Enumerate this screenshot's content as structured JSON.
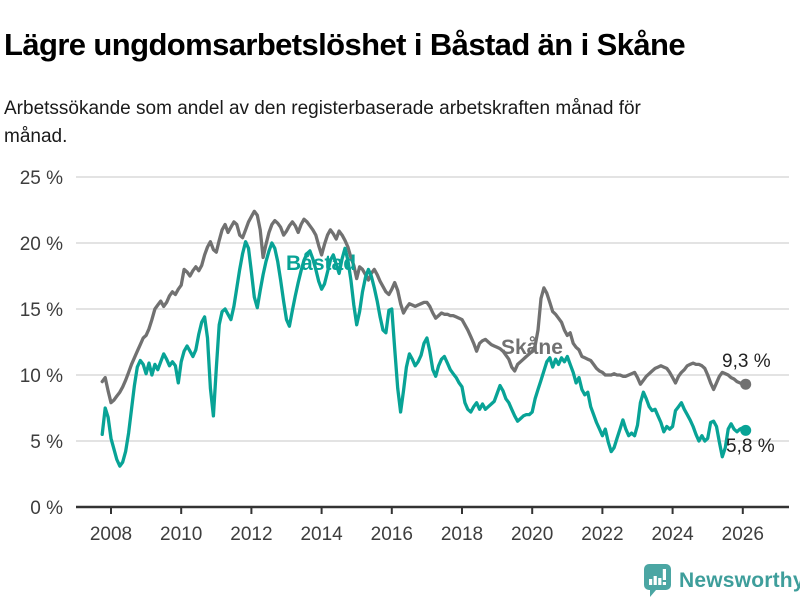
{
  "header": {
    "title": "Lägre ungdomsarbetslöshet i Båstad än i Skåne",
    "subtitle": "Arbetssökande som andel av den registerbaserade arbetskraften månad för månad."
  },
  "footer": {
    "brand": "Newsworthy",
    "logo_color": "#4BA6A3"
  },
  "colors": {
    "bastad_line": "#08A396",
    "skane_line": "#717171",
    "gridline": "#dadada",
    "axis": "#333333",
    "tick_text": "#3d3d3d"
  },
  "chart_data": {
    "type": "line",
    "title": "Lägre ungdomsarbetslöshet i Båstad än i Skåne",
    "subtitle": "Arbetssökande som andel av den registerbaserade arbetskraften månad för månad.",
    "unit": "%",
    "frequency": "monthly",
    "x_start": "2007-10",
    "x_end": "2026-02",
    "ylim": [
      0,
      25
    ],
    "grid": true,
    "legend_position": "inline-labels",
    "y_ticks": [
      {
        "value": 0,
        "label": "0 %"
      },
      {
        "value": 5,
        "label": "5 %"
      },
      {
        "value": 10,
        "label": "10 %"
      },
      {
        "value": 15,
        "label": "15 %"
      },
      {
        "value": 20,
        "label": "20 %"
      },
      {
        "value": 25,
        "label": "25 %"
      }
    ],
    "x_ticks": [
      {
        "year": 2008,
        "label": "2008"
      },
      {
        "year": 2010,
        "label": "2010"
      },
      {
        "year": 2012,
        "label": "2012"
      },
      {
        "year": 2014,
        "label": "2014"
      },
      {
        "year": 2016,
        "label": "2016"
      },
      {
        "year": 2018,
        "label": "2018"
      },
      {
        "year": 2020,
        "label": "2020"
      },
      {
        "year": 2022,
        "label": "2022"
      },
      {
        "year": 2024,
        "label": "2024"
      },
      {
        "year": 2026,
        "label": "2026"
      }
    ],
    "series": [
      {
        "name": "Skåne",
        "color": "#717171",
        "end_label": "9,3 %",
        "end_value": 9.3,
        "values": [
          9.5,
          9.8,
          8.8,
          7.9,
          8.1,
          8.4,
          8.7,
          9.1,
          9.6,
          10.2,
          10.8,
          11.3,
          11.8,
          12.3,
          12.8,
          13.0,
          13.5,
          14.2,
          15.0,
          15.3,
          15.6,
          15.2,
          15.5,
          16.0,
          16.3,
          16.1,
          16.5,
          16.8,
          18.0,
          17.8,
          17.5,
          17.9,
          18.2,
          17.9,
          18.3,
          19.1,
          19.7,
          20.1,
          19.5,
          19.3,
          20.2,
          21.0,
          21.4,
          20.8,
          21.2,
          21.6,
          21.4,
          20.6,
          20.4,
          21.0,
          21.6,
          22.0,
          22.4,
          22.1,
          21.0,
          18.9,
          19.9,
          20.8,
          21.4,
          21.7,
          21.5,
          21.2,
          20.6,
          20.9,
          21.3,
          21.6,
          21.3,
          20.8,
          21.4,
          21.8,
          21.6,
          21.3,
          21.0,
          20.6,
          19.8,
          19.1,
          19.9,
          20.6,
          21.0,
          20.7,
          20.3,
          20.9,
          20.6,
          20.2,
          19.7,
          18.9,
          18.3,
          17.3,
          18.2,
          18.0,
          17.6,
          17.2,
          17.7,
          18.0,
          17.6,
          17.1,
          16.7,
          16.3,
          16.1,
          16.5,
          17.0,
          16.4,
          15.4,
          14.7,
          15.1,
          15.4,
          15.3,
          15.2,
          15.3,
          15.4,
          15.5,
          15.5,
          15.2,
          14.7,
          14.3,
          14.5,
          14.7,
          14.6,
          14.6,
          14.5,
          14.5,
          14.4,
          14.3,
          14.2,
          13.8,
          13.4,
          12.9,
          12.4,
          11.8,
          12.4,
          12.6,
          12.7,
          12.5,
          12.3,
          12.2,
          12.1,
          12.0,
          11.8,
          11.5,
          11.2,
          10.6,
          10.3,
          10.8,
          11.0,
          11.2,
          11.4,
          11.6,
          11.8,
          12.2,
          13.4,
          15.8,
          16.6,
          16.2,
          15.5,
          14.8,
          14.6,
          14.3,
          14.0,
          13.4,
          13.0,
          13.2,
          12.4,
          12.1,
          11.9,
          11.4,
          11.3,
          11.2,
          11.1,
          10.8,
          10.5,
          10.3,
          10.2,
          10.0,
          10.0,
          10.0,
          10.1,
          10.0,
          10.0,
          9.9,
          9.9,
          10.0,
          10.1,
          10.2,
          9.8,
          9.3,
          9.6,
          9.9,
          10.1,
          10.3,
          10.5,
          10.6,
          10.7,
          10.6,
          10.5,
          10.2,
          9.8,
          9.4,
          9.9,
          10.2,
          10.4,
          10.7,
          10.8,
          10.9,
          10.8,
          10.8,
          10.7,
          10.5,
          10.0,
          9.4,
          8.9,
          9.4,
          9.9,
          10.2,
          10.1,
          10.0,
          9.8,
          9.7,
          9.5,
          9.4,
          9.3,
          9.3
        ]
      },
      {
        "name": "Båstad",
        "color": "#08A396",
        "end_label": "5,8 %",
        "end_value": 5.8,
        "values": [
          5.5,
          7.5,
          6.8,
          5.2,
          4.4,
          3.6,
          3.1,
          3.4,
          4.2,
          5.6,
          7.4,
          9.2,
          10.6,
          11.1,
          10.8,
          10.1,
          10.9,
          10.0,
          10.8,
          10.4,
          11.0,
          11.6,
          11.2,
          10.7,
          11.0,
          10.7,
          9.4,
          11.0,
          11.8,
          12.2,
          11.8,
          11.4,
          11.9,
          13.1,
          14.0,
          14.4,
          12.8,
          9.0,
          6.9,
          10.5,
          13.8,
          14.8,
          15.0,
          14.6,
          14.2,
          15.2,
          16.6,
          18.0,
          19.2,
          20.1,
          19.6,
          17.8,
          15.9,
          15.1,
          16.4,
          17.6,
          18.6,
          19.4,
          20.0,
          19.6,
          18.6,
          17.2,
          15.6,
          14.2,
          13.7,
          14.9,
          16.0,
          17.0,
          17.9,
          18.7,
          19.2,
          19.4,
          18.8,
          18.0,
          17.1,
          16.5,
          16.9,
          17.8,
          18.7,
          19.1,
          18.4,
          17.7,
          18.8,
          19.6,
          18.7,
          17.2,
          15.3,
          13.8,
          14.8,
          16.3,
          17.4,
          18.0,
          17.5,
          16.6,
          15.6,
          14.4,
          13.4,
          13.2,
          14.9,
          15.0,
          12.0,
          9.0,
          7.2,
          8.8,
          10.6,
          11.6,
          11.2,
          10.7,
          11.0,
          11.5,
          12.4,
          12.8,
          11.8,
          10.4,
          9.9,
          10.7,
          11.2,
          11.4,
          10.9,
          10.4,
          10.1,
          9.8,
          9.4,
          9.1,
          7.9,
          7.4,
          7.2,
          7.6,
          7.9,
          7.4,
          7.8,
          7.4,
          7.6,
          7.8,
          8.0,
          8.6,
          9.2,
          8.8,
          8.2,
          7.9,
          7.4,
          6.9,
          6.5,
          6.7,
          6.9,
          7.0,
          7.0,
          7.2,
          8.2,
          8.9,
          9.6,
          10.3,
          11.0,
          11.3,
          10.6,
          11.2,
          10.8,
          11.3,
          11.0,
          11.4,
          10.8,
          10.2,
          9.4,
          9.8,
          8.9,
          8.5,
          8.7,
          7.6,
          7.0,
          6.4,
          5.9,
          5.4,
          5.9,
          4.9,
          4.2,
          4.5,
          5.2,
          5.9,
          6.6,
          5.9,
          5.4,
          5.6,
          5.4,
          6.2,
          7.9,
          8.7,
          8.2,
          7.6,
          7.3,
          7.4,
          6.9,
          6.4,
          5.7,
          6.1,
          5.9,
          6.1,
          7.3,
          7.6,
          7.9,
          7.4,
          7.0,
          6.6,
          6.1,
          5.5,
          5.0,
          5.4,
          5.0,
          5.2,
          6.4,
          6.5,
          6.1,
          4.9,
          3.8,
          4.5,
          5.9,
          6.3,
          5.9,
          5.7,
          5.9,
          6.0,
          5.8
        ]
      }
    ]
  }
}
